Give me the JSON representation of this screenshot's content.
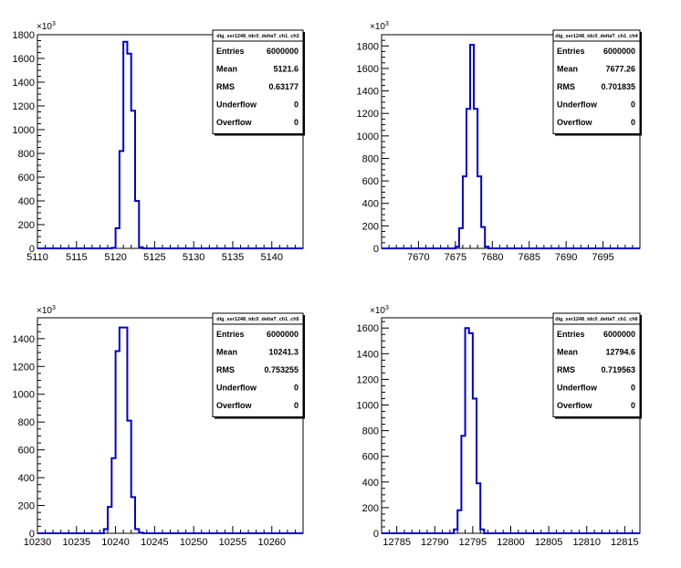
{
  "chart_data": [
    {
      "type": "bar",
      "histogram_name": "dig_ser1248_tdc0_deltaT_ch1_ch3",
      "xlim": [
        5110,
        5144
      ],
      "ylim": [
        0,
        1800
      ],
      "y_multiplier": {
        "base": "×10",
        "exp": "3"
      },
      "x_ticks": [
        5110,
        5115,
        5120,
        5125,
        5130,
        5135,
        5140
      ],
      "x_tick_labels": [
        "5110",
        "5115",
        "5120",
        "5125",
        "5130",
        "5135",
        "5140"
      ],
      "y_ticks": [
        0,
        200,
        400,
        600,
        800,
        1000,
        1200,
        1400,
        1600,
        1800
      ],
      "y_tick_labels": [
        "0",
        "200",
        "400",
        "600",
        "800",
        "1000",
        "1200",
        "1400",
        "1600",
        "1800"
      ],
      "bin_width": 0.5,
      "bins_start": [
        5119.5,
        5120,
        5120.5,
        5121,
        5121.5,
        5122,
        5122.5,
        5123
      ],
      "values": [
        5,
        170,
        820,
        1740,
        1640,
        1160,
        400,
        10
      ],
      "stats": [
        {
          "label": "Entries",
          "value": "6000000"
        },
        {
          "label": "Mean",
          "value": "5121.6"
        },
        {
          "label": "RMS",
          "value": "0.63177"
        },
        {
          "label": "Underflow",
          "value": "0"
        },
        {
          "label": "Overflow",
          "value": "0"
        }
      ]
    },
    {
      "type": "bar",
      "histogram_name": "dig_ser1248_tdc0_deltaT_ch1_ch4",
      "xlim": [
        7665,
        7700
      ],
      "ylim": [
        0,
        1900
      ],
      "y_multiplier": {
        "base": "×10",
        "exp": "3"
      },
      "x_ticks": [
        7670,
        7675,
        7680,
        7685,
        7690,
        7695
      ],
      "x_tick_labels": [
        "7670",
        "7675",
        "7680",
        "7685",
        "7690",
        "7695"
      ],
      "y_ticks": [
        0,
        200,
        400,
        600,
        800,
        1000,
        1200,
        1400,
        1600,
        1800
      ],
      "y_tick_labels": [
        "0",
        "200",
        "400",
        "600",
        "800",
        "1000",
        "1200",
        "1400",
        "1600",
        "1800"
      ],
      "bin_width": 0.5,
      "bins_start": [
        7675,
        7675.5,
        7676,
        7676.5,
        7677,
        7677.5,
        7678,
        7678.5,
        7679
      ],
      "values": [
        15,
        180,
        640,
        1240,
        1810,
        1240,
        640,
        190,
        15
      ],
      "stats": [
        {
          "label": "Entries",
          "value": "6000000"
        },
        {
          "label": "Mean",
          "value": "7677.26"
        },
        {
          "label": "RMS",
          "value": "0.701835"
        },
        {
          "label": "Underflow",
          "value": "0"
        },
        {
          "label": "Overflow",
          "value": "0"
        }
      ]
    },
    {
      "type": "bar",
      "histogram_name": "dig_ser1248_tdc0_deltaT_ch1_ch5",
      "xlim": [
        10230,
        10264
      ],
      "ylim": [
        0,
        1550
      ],
      "y_multiplier": {
        "base": "×10",
        "exp": "3"
      },
      "x_ticks": [
        10230,
        10235,
        10240,
        10245,
        10250,
        10255,
        10260
      ],
      "x_tick_labels": [
        "10230",
        "10235",
        "10240",
        "10245",
        "10250",
        "10255",
        "10260"
      ],
      "y_ticks": [
        0,
        200,
        400,
        600,
        800,
        1000,
        1200,
        1400
      ],
      "y_tick_labels": [
        "0",
        "200",
        "400",
        "600",
        "800",
        "1000",
        "1200",
        "1400"
      ],
      "bin_width": 0.5,
      "bins_start": [
        10238.5,
        10239,
        10239.5,
        10240,
        10240.5,
        10241,
        10241.5,
        10242,
        10242.5,
        10243
      ],
      "values": [
        30,
        190,
        540,
        1310,
        1480,
        1480,
        810,
        260,
        30,
        5
      ],
      "stats": [
        {
          "label": "Entries",
          "value": "6000000"
        },
        {
          "label": "Mean",
          "value": "10241.3"
        },
        {
          "label": "RMS",
          "value": "0.753255"
        },
        {
          "label": "Underflow",
          "value": "0"
        },
        {
          "label": "Overflow",
          "value": "0"
        }
      ]
    },
    {
      "type": "bar",
      "histogram_name": "dig_ser1248_tdc0_deltaT_ch1_ch6",
      "xlim": [
        12783,
        12817
      ],
      "ylim": [
        0,
        1680
      ],
      "y_multiplier": {
        "base": "×10",
        "exp": "3"
      },
      "x_ticks": [
        12785,
        12790,
        12795,
        12800,
        12805,
        12810,
        12815
      ],
      "x_tick_labels": [
        "12785",
        "12790",
        "12795",
        "12800",
        "12805",
        "12810",
        "12815"
      ],
      "y_ticks": [
        0,
        200,
        400,
        600,
        800,
        1000,
        1200,
        1400,
        1600
      ],
      "y_tick_labels": [
        "0",
        "200",
        "400",
        "600",
        "800",
        "1000",
        "1200",
        "1400",
        "1600"
      ],
      "bin_width": 0.5,
      "bins_start": [
        12792.5,
        12793,
        12793.5,
        12794,
        12794.5,
        12795,
        12795.5,
        12796
      ],
      "values": [
        30,
        180,
        760,
        1600,
        1560,
        1050,
        390,
        30
      ],
      "stats": [
        {
          "label": "Entries",
          "value": "6000000"
        },
        {
          "label": "Mean",
          "value": "12794.6"
        },
        {
          "label": "RMS",
          "value": "0.719563"
        },
        {
          "label": "Underflow",
          "value": "0"
        },
        {
          "label": "Overflow",
          "value": "0"
        }
      ]
    }
  ],
  "colors": {
    "line": "#0000cc",
    "axis": "#000000",
    "background": "#ffffff"
  }
}
